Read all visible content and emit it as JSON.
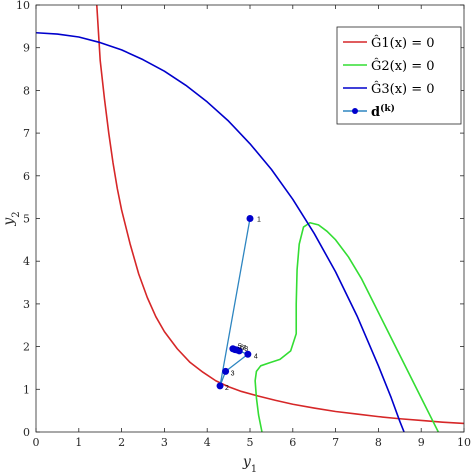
{
  "chart_data": {
    "type": "line",
    "xlabel": "y",
    "xlabel_sub": "1",
    "ylabel": "y",
    "ylabel_sub": "2",
    "xlim": [
      0,
      10
    ],
    "ylim": [
      0,
      10
    ],
    "xticks": [
      0,
      1,
      2,
      3,
      4,
      5,
      6,
      7,
      8,
      9,
      10
    ],
    "yticks": [
      0,
      1,
      2,
      3,
      4,
      5,
      6,
      7,
      8,
      9,
      10
    ],
    "grid": false,
    "legend_position": "top-right",
    "series": [
      {
        "name": "Ĝ1(x) = 0",
        "color": "#d62728",
        "style": "line",
        "x": [
          1.42,
          1.5,
          1.6,
          1.7,
          1.8,
          1.9,
          2.0,
          2.2,
          2.4,
          2.6,
          2.8,
          3.0,
          3.3,
          3.6,
          3.9,
          4.2,
          4.5,
          4.8,
          5.2,
          5.6,
          6.0,
          6.5,
          7.0,
          7.5,
          8.0,
          8.5,
          9.0,
          9.5,
          10.0
        ],
        "y": [
          10.0,
          8.7,
          7.8,
          7.0,
          6.3,
          5.7,
          5.2,
          4.4,
          3.7,
          3.15,
          2.7,
          2.35,
          1.95,
          1.63,
          1.4,
          1.2,
          1.06,
          0.95,
          0.84,
          0.74,
          0.65,
          0.56,
          0.48,
          0.42,
          0.36,
          0.31,
          0.27,
          0.23,
          0.2
        ]
      },
      {
        "name": "Ĝ2(x) = 0",
        "color": "#33dd33",
        "style": "line",
        "x": [
          5.28,
          5.2,
          5.15,
          5.12,
          5.15,
          5.25,
          5.45,
          5.7,
          5.95,
          6.08,
          6.08,
          6.1,
          6.15,
          6.25,
          6.4,
          6.6,
          6.8,
          7.0,
          7.3,
          7.6,
          7.9,
          8.2,
          8.5,
          8.8,
          9.05,
          9.25,
          9.4
        ],
        "y": [
          0.0,
          0.4,
          0.8,
          1.2,
          1.42,
          1.55,
          1.62,
          1.7,
          1.9,
          2.3,
          3.0,
          3.8,
          4.4,
          4.8,
          4.9,
          4.85,
          4.7,
          4.5,
          4.1,
          3.6,
          3.0,
          2.4,
          1.8,
          1.2,
          0.7,
          0.3,
          0.0
        ]
      },
      {
        "name": "Ĝ3(x) = 0",
        "color": "#0000cc",
        "style": "line",
        "x": [
          0.0,
          0.5,
          1.0,
          1.5,
          2.0,
          2.5,
          3.0,
          3.5,
          4.0,
          4.5,
          5.0,
          5.5,
          6.0,
          6.5,
          7.0,
          7.5,
          8.0,
          8.3,
          8.5,
          8.6
        ],
        "y": [
          9.35,
          9.32,
          9.25,
          9.12,
          8.95,
          8.72,
          8.45,
          8.12,
          7.73,
          7.28,
          6.75,
          6.15,
          5.45,
          4.65,
          3.75,
          2.72,
          1.55,
          0.8,
          0.25,
          0.0
        ]
      },
      {
        "name": "d",
        "name_sup": "(k)",
        "color": "#0000cc",
        "line_color": "#2e86c1",
        "style": "line-markers",
        "x": [
          5.0,
          4.3,
          4.43,
          4.95,
          4.6,
          4.65,
          4.7,
          4.75
        ],
        "y": [
          5.0,
          1.08,
          1.42,
          1.82,
          1.95,
          1.93,
          1.92,
          1.9
        ],
        "point_labels": [
          "1",
          "2",
          "3",
          "4",
          "5",
          "6",
          "7",
          "8"
        ]
      }
    ]
  }
}
